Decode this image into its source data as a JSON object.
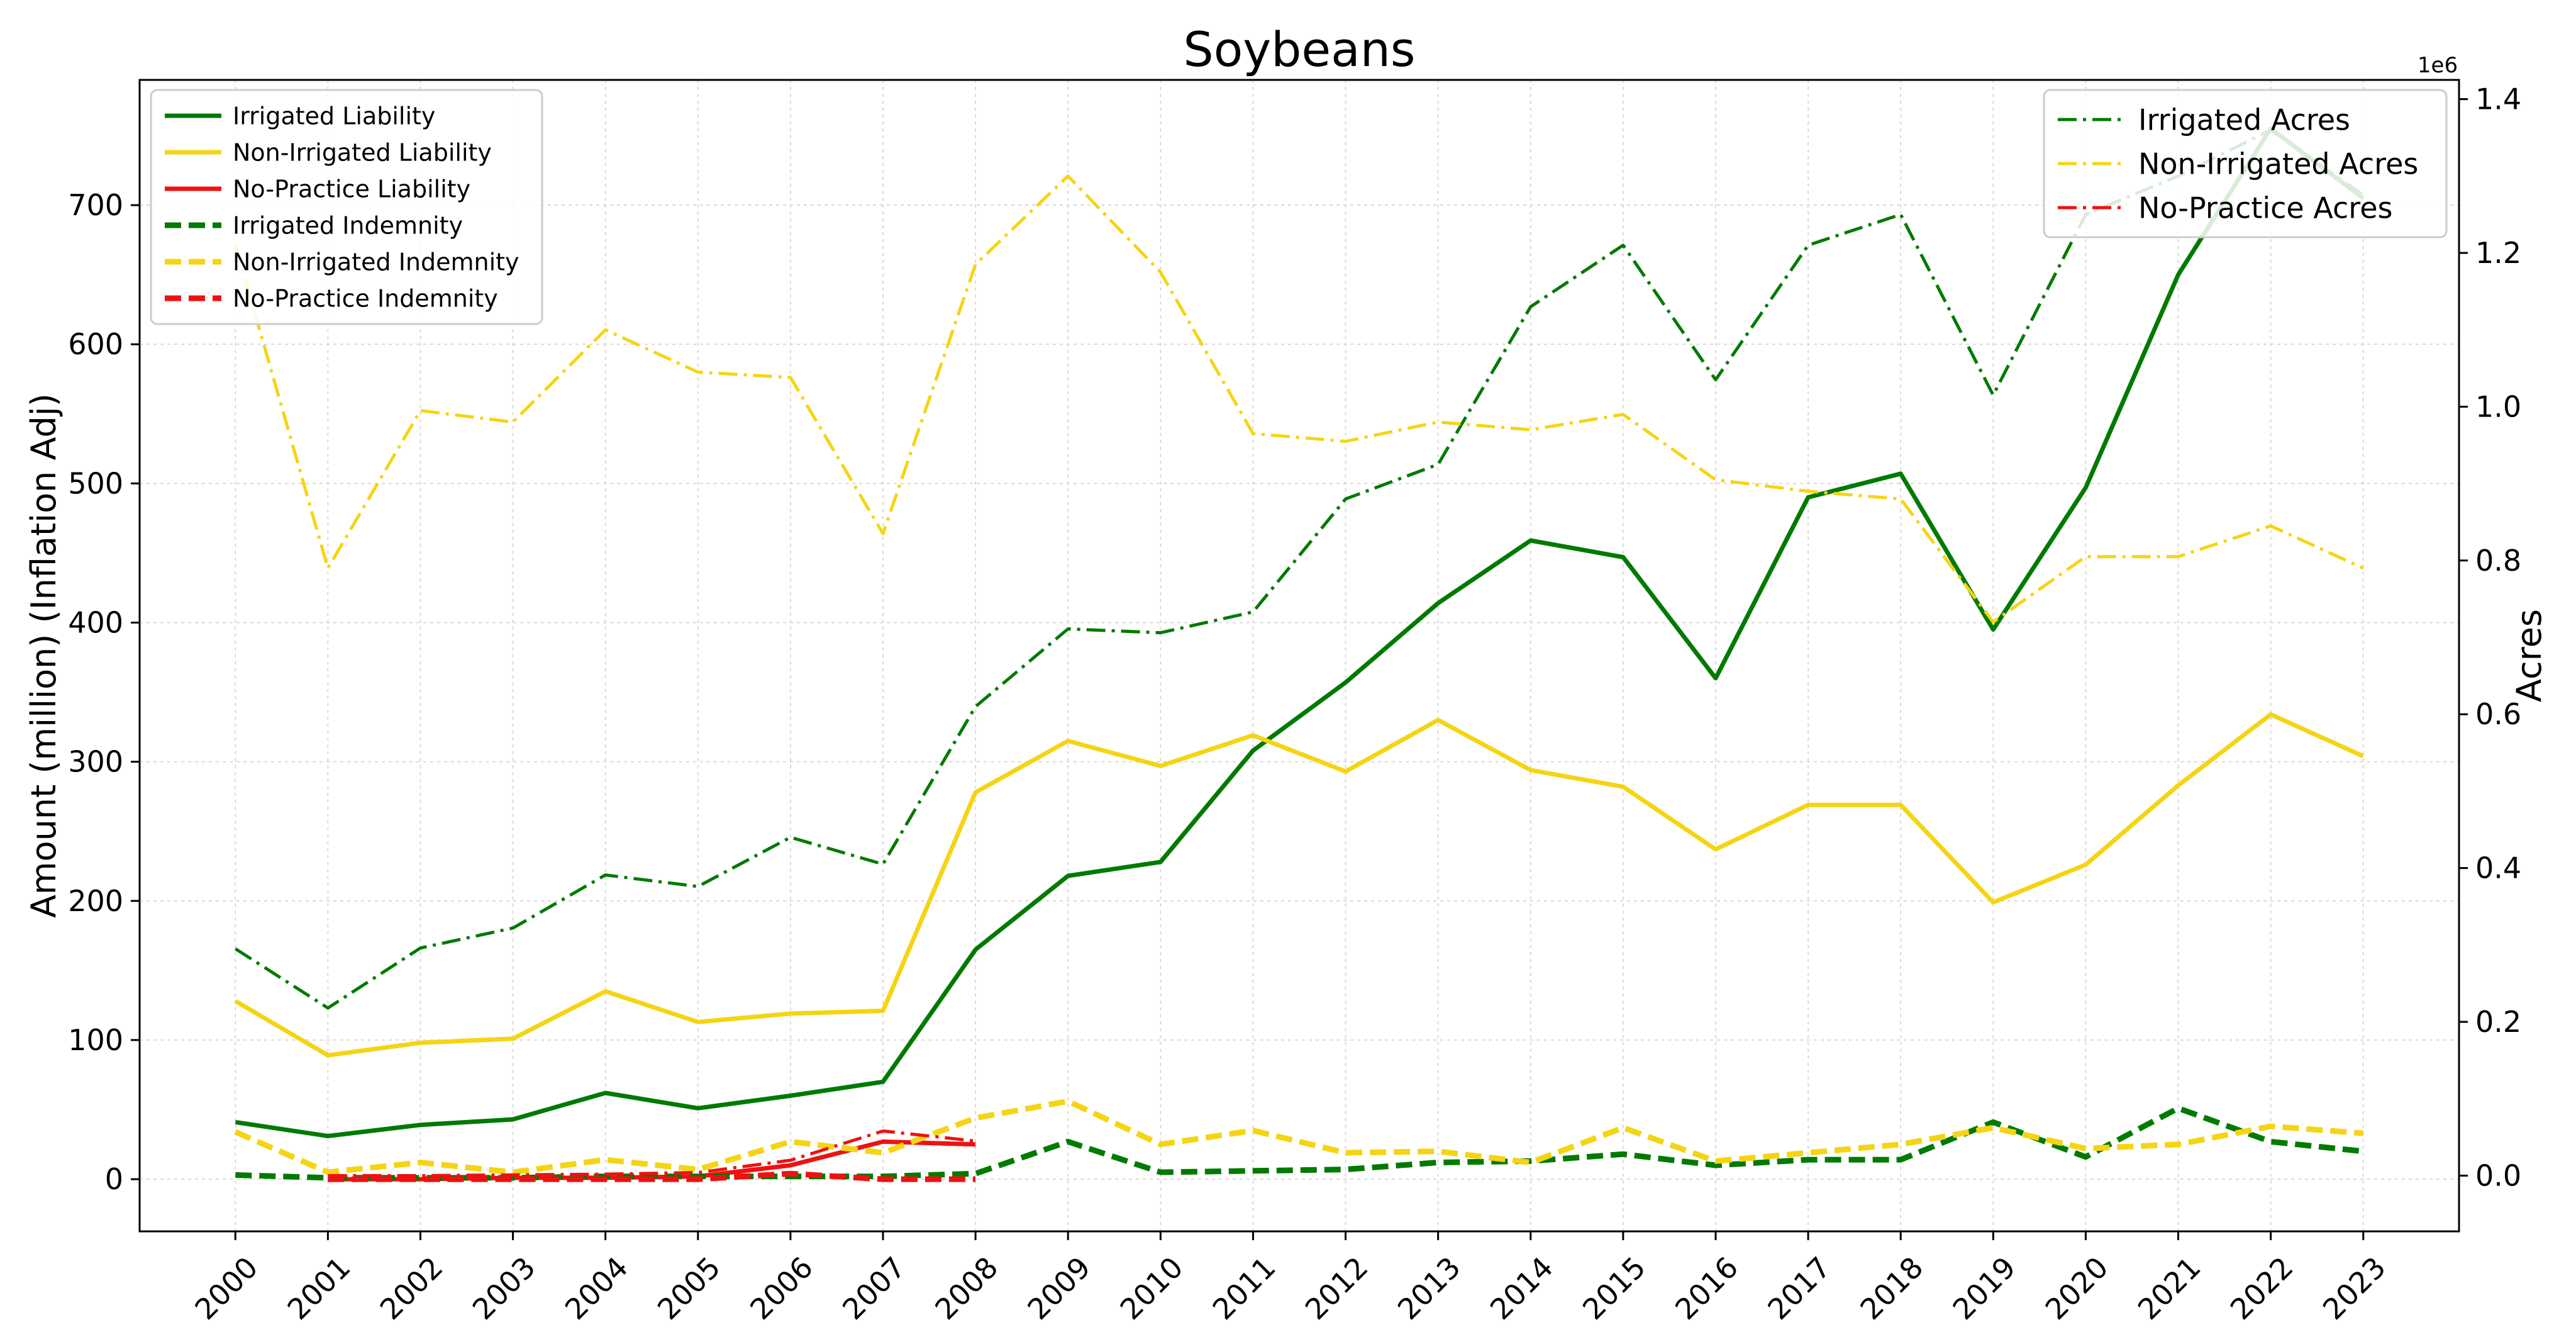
{
  "chart_data": {
    "type": "line",
    "title": "Soybeans",
    "xlabel": "",
    "ylabel": "Amount (million) (Inflation Adj)",
    "y2label": "Acres",
    "y2_offset_label": "1e6",
    "x": [
      2000,
      2001,
      2002,
      2003,
      2004,
      2005,
      2006,
      2007,
      2008,
      2009,
      2010,
      2011,
      2012,
      2013,
      2014,
      2015,
      2016,
      2017,
      2018,
      2019,
      2020,
      2021,
      2022,
      2023
    ],
    "ylim": [
      -37.5,
      790
    ],
    "y2lim": [
      -0.0725,
      1.425
    ],
    "yticks": [
      0,
      100,
      200,
      300,
      400,
      500,
      600,
      700
    ],
    "y2ticks": [
      0.0,
      0.2,
      0.4,
      0.6,
      0.8,
      1.0,
      1.2,
      1.4
    ],
    "grid": true,
    "left_legend_placement": "top-left",
    "right_legend_placement": "top-right",
    "series": [
      {
        "name": "Irrigated Liability",
        "axis": "left",
        "style": "solid",
        "color": "#007a00",
        "x": [
          2000,
          2001,
          2002,
          2003,
          2004,
          2005,
          2006,
          2007,
          2008,
          2009,
          2010,
          2011,
          2012,
          2013,
          2014,
          2015,
          2016,
          2017,
          2018,
          2019,
          2020,
          2021,
          2022,
          2023
        ],
        "values": [
          41,
          31,
          39,
          43,
          62,
          51,
          60,
          70,
          165,
          218,
          228,
          308,
          357,
          414,
          459,
          447,
          360,
          490,
          507,
          395,
          497,
          650,
          755,
          705
        ]
      },
      {
        "name": "Non-Irrigated Liability",
        "axis": "left",
        "style": "solid",
        "color": "#f5d414",
        "x": [
          2000,
          2001,
          2002,
          2003,
          2004,
          2005,
          2006,
          2007,
          2008,
          2009,
          2010,
          2011,
          2012,
          2013,
          2014,
          2015,
          2016,
          2017,
          2018,
          2019,
          2020,
          2021,
          2022,
          2023
        ],
        "values": [
          128,
          89,
          98,
          101,
          135,
          113,
          119,
          121,
          278,
          315,
          297,
          319,
          293,
          330,
          294,
          282,
          237,
          269,
          269,
          199,
          226,
          283,
          334,
          304
        ]
      },
      {
        "name": "No-Practice Liability",
        "axis": "left",
        "style": "solid",
        "color": "#ee1111",
        "x": [
          2001,
          2002,
          2003,
          2004,
          2005,
          2006,
          2007,
          2008
        ],
        "values": [
          0,
          0,
          1,
          1,
          2,
          10,
          27,
          25
        ]
      },
      {
        "name": "Irrigated Indemnity",
        "axis": "left",
        "style": "dashed",
        "color": "#007a00",
        "x": [
          2000,
          2001,
          2002,
          2003,
          2004,
          2005,
          2006,
          2007,
          2008,
          2009,
          2010,
          2011,
          2012,
          2013,
          2014,
          2015,
          2016,
          2017,
          2018,
          2019,
          2020,
          2021,
          2022,
          2023
        ],
        "values": [
          3,
          1,
          1,
          1,
          2,
          2,
          2,
          2,
          4,
          27,
          5,
          6,
          7,
          12,
          13,
          18,
          10,
          14,
          14,
          41,
          16,
          51,
          27,
          20
        ]
      },
      {
        "name": "Non-Irrigated Indemnity",
        "axis": "left",
        "style": "dashed",
        "color": "#f5d414",
        "x": [
          2000,
          2001,
          2002,
          2003,
          2004,
          2005,
          2006,
          2007,
          2008,
          2009,
          2010,
          2011,
          2012,
          2013,
          2014,
          2015,
          2016,
          2017,
          2018,
          2019,
          2020,
          2021,
          2022,
          2023
        ],
        "values": [
          34,
          5,
          12,
          5,
          14,
          7,
          27,
          19,
          44,
          56,
          25,
          35,
          19,
          20,
          12,
          37,
          13,
          19,
          25,
          37,
          22,
          25,
          38,
          33
        ]
      },
      {
        "name": "No-Practice Indemnity",
        "axis": "left",
        "style": "dashed",
        "color": "#ee1111",
        "x": [
          2001,
          2002,
          2003,
          2004,
          2005,
          2006,
          2007,
          2008
        ],
        "values": [
          0,
          0,
          0,
          0,
          0,
          4,
          0,
          0
        ]
      },
      {
        "name": "Irrigated Acres",
        "axis": "right",
        "style": "dashdot",
        "color": "#007a00",
        "x": [
          2000,
          2001,
          2002,
          2003,
          2004,
          2005,
          2006,
          2007,
          2008,
          2009,
          2010,
          2011,
          2012,
          2013,
          2014,
          2015,
          2016,
          2017,
          2018,
          2019,
          2020,
          2021,
          2022,
          2023
        ],
        "values": [
          0.295,
          0.218,
          0.296,
          0.322,
          0.391,
          0.376,
          0.44,
          0.405,
          0.61,
          0.711,
          0.706,
          0.733,
          0.88,
          0.925,
          1.13,
          1.21,
          1.035,
          1.21,
          1.25,
          1.015,
          1.25,
          1.3,
          1.36,
          1.275
        ]
      },
      {
        "name": "Non-Irrigated Acres",
        "axis": "right",
        "style": "dashdot",
        "color": "#f5d414",
        "x": [
          2000,
          2001,
          2002,
          2003,
          2004,
          2005,
          2006,
          2007,
          2008,
          2009,
          2010,
          2011,
          2012,
          2013,
          2014,
          2015,
          2016,
          2017,
          2018,
          2019,
          2020,
          2021,
          2022,
          2023
        ],
        "values": [
          1.21,
          0.79,
          0.995,
          0.98,
          1.1,
          1.045,
          1.038,
          0.835,
          1.185,
          1.3,
          1.175,
          0.965,
          0.955,
          0.98,
          0.97,
          0.99,
          0.905,
          0.89,
          0.88,
          0.72,
          0.805,
          0.805,
          0.845,
          0.79
        ]
      },
      {
        "name": "No-Practice Acres",
        "axis": "right",
        "style": "dashdot",
        "color": "#ee1111",
        "x": [
          2001,
          2002,
          2003,
          2004,
          2005,
          2006,
          2007,
          2008
        ],
        "values": [
          0.0,
          0.0,
          0.001,
          0.002,
          0.004,
          0.02,
          0.058,
          0.045
        ]
      }
    ]
  }
}
